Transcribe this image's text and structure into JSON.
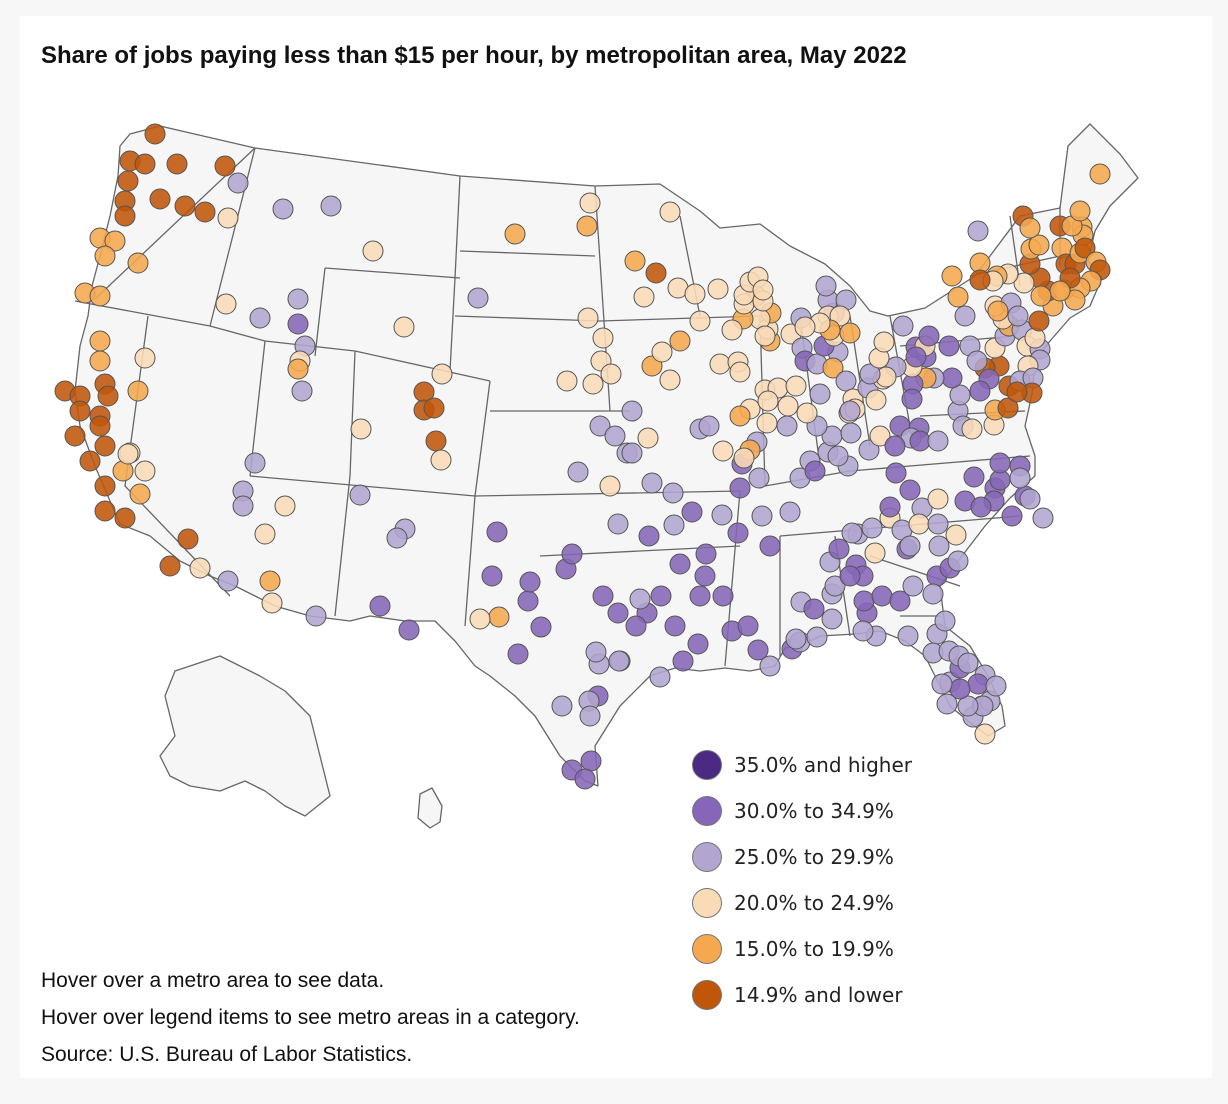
{
  "title": "Share of jobs paying less than $15 per hour, by metropolitan area, May 2022",
  "legend": [
    {
      "label": "35.0% and higher",
      "color": "#4a2a82"
    },
    {
      "label": "30.0% to 34.9%",
      "color": "#8566b8"
    },
    {
      "label": "25.0% to 29.9%",
      "color": "#b2a5cf"
    },
    {
      "label": "20.0% to 24.9%",
      "color": "#f9dbb7"
    },
    {
      "label": "15.0% to 19.9%",
      "color": "#f6a84e"
    },
    {
      "label": "14.9% and lower",
      "color": "#c0560a"
    }
  ],
  "notes": {
    "hover_metro": "Hover over a metro area to see data.",
    "hover_legend": "Hover over legend items to see metro areas in a category.",
    "source": "Source: U.S. Bureau of Labor Statistics."
  }
}
